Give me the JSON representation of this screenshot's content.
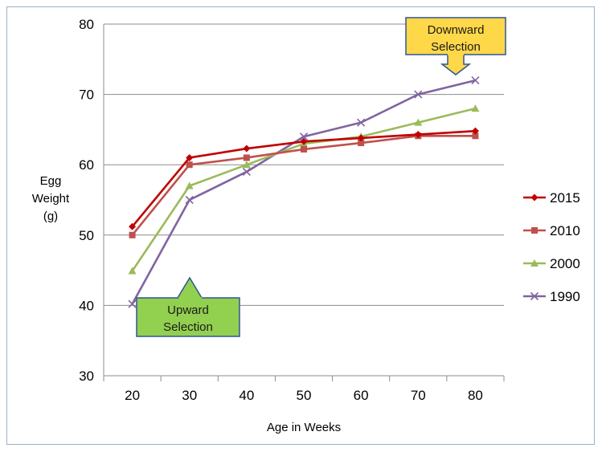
{
  "chart_data": {
    "type": "line",
    "title": "",
    "xlabel": "Age in Weeks",
    "ylabel": [
      "Egg",
      "Weight",
      "(g)"
    ],
    "x": [
      20,
      30,
      40,
      50,
      60,
      70,
      80
    ],
    "xlim": [
      15,
      85
    ],
    "ylim": [
      30,
      80
    ],
    "yticks": [
      30,
      40,
      50,
      60,
      70,
      80
    ],
    "grid": "horizontal",
    "legend_position": "right",
    "series": [
      {
        "name": "2015",
        "color": "#c00000",
        "marker": "diamond",
        "values": [
          51.2,
          61.0,
          62.3,
          63.3,
          63.8,
          64.3,
          64.8
        ]
      },
      {
        "name": "2010",
        "color": "#c0504d",
        "marker": "square",
        "values": [
          50.0,
          60.0,
          61.0,
          62.2,
          63.1,
          64.1,
          64.1
        ]
      },
      {
        "name": "2000",
        "color": "#9bbb59",
        "marker": "triangle",
        "values": [
          44.9,
          57.0,
          60.0,
          63.0,
          64.0,
          66.0,
          68.0
        ]
      },
      {
        "name": "1990",
        "color": "#8064a2",
        "marker": "x",
        "values": [
          40.2,
          55.0,
          59.0,
          64.0,
          66.0,
          70.0,
          72.0
        ]
      }
    ],
    "annotations": [
      {
        "lines": [
          "Upward",
          "Selection"
        ],
        "fill": "#92d050",
        "arrow": "up"
      },
      {
        "lines": [
          "Downward",
          "Selection"
        ],
        "fill": "#ffd84a",
        "arrow": "down"
      }
    ]
  }
}
